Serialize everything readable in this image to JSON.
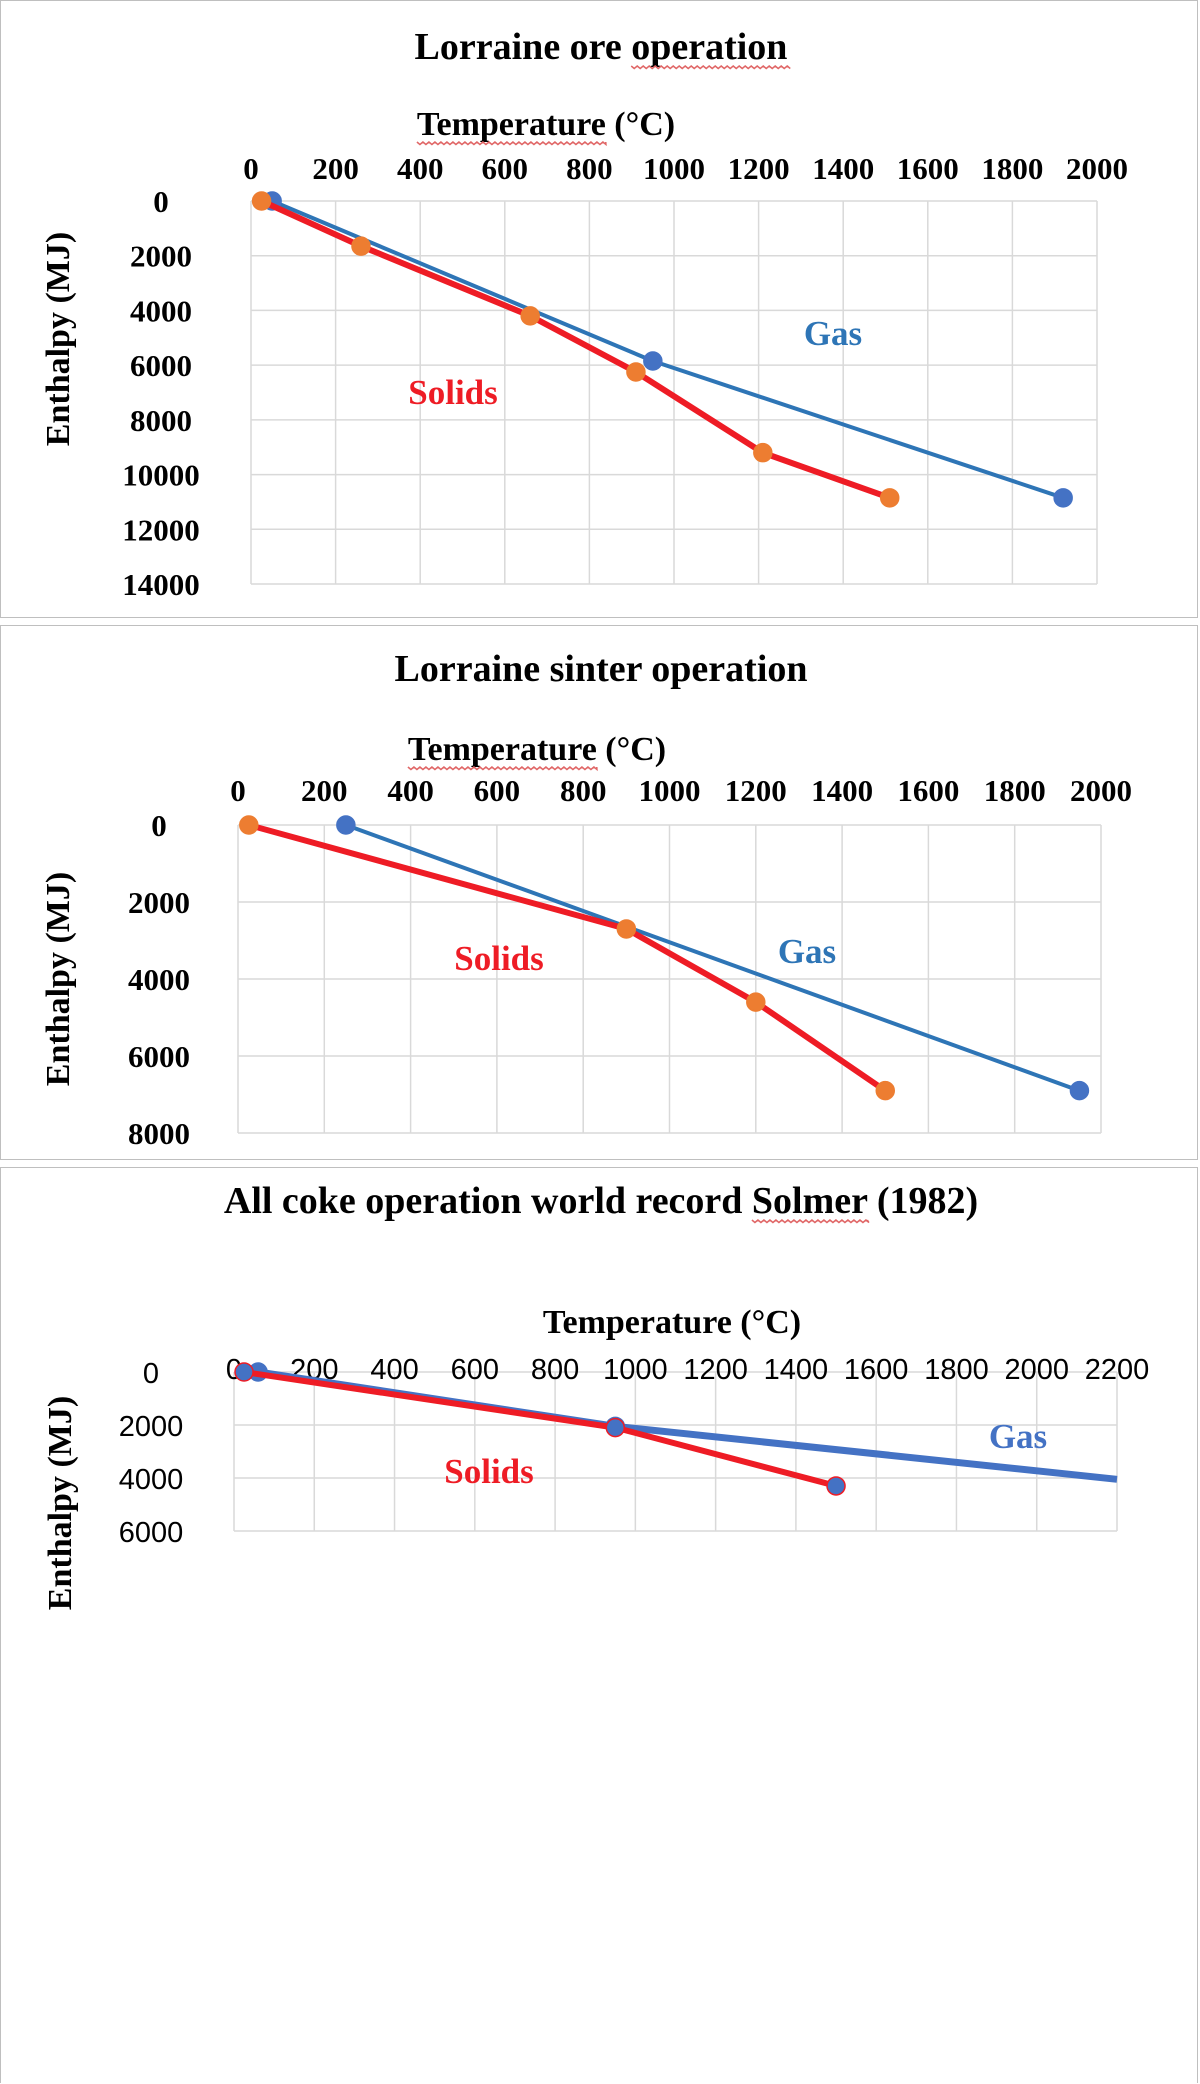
{
  "chart_data": [
    {
      "type": "line",
      "title": "Lorraine ore operation",
      "xlabel": "Temperature (°C)",
      "ylabel": "Enthalpy (MJ)",
      "xlim": [
        0,
        2000
      ],
      "ylim": [
        0,
        14000
      ],
      "y_reversed": true,
      "x_axis_position": "top",
      "x_ticks": [
        0,
        200,
        400,
        600,
        800,
        1000,
        1200,
        1400,
        1600,
        1800,
        2000
      ],
      "y_ticks": [
        0,
        2000,
        4000,
        6000,
        8000,
        10000,
        12000,
        14000
      ],
      "grid": true,
      "series": [
        {
          "name": "Gas",
          "color": "#2E75B6",
          "marker_color": "#4472C4",
          "x": [
            50,
            950,
            1920
          ],
          "y": [
            0,
            5850,
            10850
          ]
        },
        {
          "name": "Solids",
          "color": "#EE1C25",
          "marker_color": "#ED7D31",
          "x": [
            25,
            260,
            660,
            910,
            1210,
            1510
          ],
          "y": [
            0,
            1650,
            4200,
            6250,
            9200,
            10850
          ]
        }
      ]
    },
    {
      "type": "line",
      "title": "Lorraine sinter operation",
      "xlabel": "Temperature (°C)",
      "ylabel": "Enthalpy (MJ)",
      "xlim": [
        0,
        2000
      ],
      "ylim": [
        0,
        8000
      ],
      "y_reversed": true,
      "x_axis_position": "top",
      "x_ticks": [
        0,
        200,
        400,
        600,
        800,
        1000,
        1200,
        1400,
        1600,
        1800,
        2000
      ],
      "y_ticks": [
        0,
        2000,
        4000,
        6000,
        8000
      ],
      "grid": true,
      "series": [
        {
          "name": "Gas",
          "color": "#2E75B6",
          "marker_color": "#4472C4",
          "x": [
            250,
            1950
          ],
          "y": [
            0,
            6900
          ]
        },
        {
          "name": "Solids",
          "color": "#EE1C25",
          "marker_color": "#ED7D31",
          "x": [
            25,
            900,
            1200,
            1500
          ],
          "y": [
            0,
            2700,
            4600,
            6900
          ]
        }
      ]
    },
    {
      "type": "line",
      "title": "All coke operation world record Solmer (1982)",
      "xlabel": "Temperature (°C)",
      "ylabel": "Enthalpy (MJ)",
      "xlim": [
        0,
        2200
      ],
      "ylim": [
        0,
        6000
      ],
      "y_reversed": true,
      "x_axis_position": "top",
      "x_ticks": [
        0,
        200,
        400,
        600,
        800,
        1000,
        1200,
        1400,
        1600,
        1800,
        2000,
        2200
      ],
      "y_ticks": [
        0,
        2000,
        4000,
        6000
      ],
      "grid": true,
      "series": [
        {
          "name": "Gas",
          "color": "#4472C4",
          "marker_color": "#4472C4",
          "x": [
            60,
            950,
            2200
          ],
          "y": [
            0,
            2050,
            4050
          ]
        },
        {
          "name": "Solids",
          "color": "#EE1C25",
          "marker_color": "#4472C4",
          "x": [
            25,
            950,
            1500
          ],
          "y": [
            0,
            2100,
            4300
          ]
        }
      ]
    }
  ]
}
